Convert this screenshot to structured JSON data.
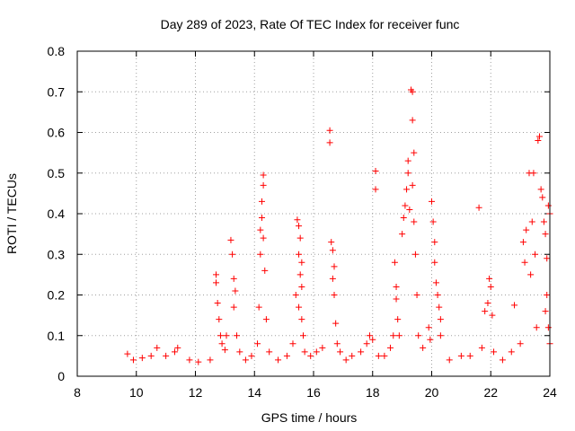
{
  "chart_data": {
    "type": "scatter",
    "title": "Day 289 of 2023, Rate Of TEC Index for receiver func",
    "xlabel": "GPS time / hours",
    "ylabel": "ROTI / TECUs",
    "xlim": [
      8,
      24
    ],
    "ylim": [
      0,
      0.8
    ],
    "x_ticks": [
      "8",
      "10",
      "12",
      "14",
      "16",
      "18",
      "20",
      "22",
      "24"
    ],
    "y_ticks": [
      "0",
      "0.1",
      "0.2",
      "0.3",
      "0.4",
      "0.5",
      "0.6",
      "0.7",
      "0.8"
    ],
    "grid": true,
    "marker": "+",
    "series": [
      {
        "name": "ROTI",
        "color": "#ff0000",
        "points": [
          [
            9.7,
            0.055
          ],
          [
            9.9,
            0.04
          ],
          [
            10.2,
            0.045
          ],
          [
            10.5,
            0.05
          ],
          [
            10.7,
            0.07
          ],
          [
            11.0,
            0.05
          ],
          [
            11.3,
            0.06
          ],
          [
            11.4,
            0.07
          ],
          [
            11.8,
            0.04
          ],
          [
            12.1,
            0.035
          ],
          [
            12.5,
            0.04
          ],
          [
            12.7,
            0.25
          ],
          [
            12.7,
            0.23
          ],
          [
            12.75,
            0.18
          ],
          [
            12.8,
            0.14
          ],
          [
            12.85,
            0.1
          ],
          [
            12.9,
            0.08
          ],
          [
            13.0,
            0.065
          ],
          [
            13.05,
            0.1
          ],
          [
            13.2,
            0.335
          ],
          [
            13.25,
            0.3
          ],
          [
            13.3,
            0.24
          ],
          [
            13.35,
            0.21
          ],
          [
            13.3,
            0.17
          ],
          [
            13.4,
            0.1
          ],
          [
            13.5,
            0.06
          ],
          [
            13.7,
            0.04
          ],
          [
            13.9,
            0.05
          ],
          [
            14.1,
            0.08
          ],
          [
            14.15,
            0.17
          ],
          [
            14.2,
            0.3
          ],
          [
            14.2,
            0.36
          ],
          [
            14.25,
            0.43
          ],
          [
            14.3,
            0.47
          ],
          [
            14.3,
            0.495
          ],
          [
            14.25,
            0.39
          ],
          [
            14.3,
            0.34
          ],
          [
            14.35,
            0.26
          ],
          [
            14.4,
            0.14
          ],
          [
            14.5,
            0.06
          ],
          [
            14.8,
            0.04
          ],
          [
            15.1,
            0.05
          ],
          [
            15.3,
            0.08
          ],
          [
            15.4,
            0.2
          ],
          [
            15.45,
            0.385
          ],
          [
            15.5,
            0.37
          ],
          [
            15.55,
            0.34
          ],
          [
            15.5,
            0.3
          ],
          [
            15.6,
            0.28
          ],
          [
            15.55,
            0.25
          ],
          [
            15.6,
            0.22
          ],
          [
            15.5,
            0.17
          ],
          [
            15.6,
            0.14
          ],
          [
            15.65,
            0.1
          ],
          [
            15.7,
            0.06
          ],
          [
            15.9,
            0.05
          ],
          [
            16.1,
            0.06
          ],
          [
            16.3,
            0.07
          ],
          [
            16.55,
            0.605
          ],
          [
            16.55,
            0.575
          ],
          [
            16.6,
            0.33
          ],
          [
            16.65,
            0.31
          ],
          [
            16.7,
            0.27
          ],
          [
            16.65,
            0.24
          ],
          [
            16.7,
            0.2
          ],
          [
            16.75,
            0.13
          ],
          [
            16.8,
            0.08
          ],
          [
            16.9,
            0.06
          ],
          [
            17.1,
            0.04
          ],
          [
            17.3,
            0.05
          ],
          [
            17.6,
            0.06
          ],
          [
            17.8,
            0.08
          ],
          [
            17.9,
            0.1
          ],
          [
            18.0,
            0.09
          ],
          [
            18.1,
            0.505
          ],
          [
            18.1,
            0.46
          ],
          [
            18.2,
            0.05
          ],
          [
            18.4,
            0.05
          ],
          [
            18.6,
            0.07
          ],
          [
            18.7,
            0.1
          ],
          [
            18.75,
            0.28
          ],
          [
            18.8,
            0.22
          ],
          [
            18.8,
            0.19
          ],
          [
            18.85,
            0.14
          ],
          [
            18.9,
            0.1
          ],
          [
            19.0,
            0.35
          ],
          [
            19.05,
            0.39
          ],
          [
            19.1,
            0.42
          ],
          [
            19.15,
            0.46
          ],
          [
            19.2,
            0.53
          ],
          [
            19.2,
            0.5
          ],
          [
            19.25,
            0.41
          ],
          [
            19.3,
            0.705
          ],
          [
            19.35,
            0.7
          ],
          [
            19.35,
            0.63
          ],
          [
            19.4,
            0.55
          ],
          [
            19.35,
            0.47
          ],
          [
            19.4,
            0.38
          ],
          [
            19.45,
            0.3
          ],
          [
            19.5,
            0.2
          ],
          [
            19.55,
            0.1
          ],
          [
            19.7,
            0.07
          ],
          [
            19.9,
            0.12
          ],
          [
            19.95,
            0.09
          ],
          [
            20.0,
            0.43
          ],
          [
            20.05,
            0.38
          ],
          [
            20.1,
            0.33
          ],
          [
            20.1,
            0.28
          ],
          [
            20.15,
            0.23
          ],
          [
            20.2,
            0.2
          ],
          [
            20.25,
            0.17
          ],
          [
            20.3,
            0.14
          ],
          [
            20.3,
            0.1
          ],
          [
            20.6,
            0.04
          ],
          [
            21.0,
            0.05
          ],
          [
            21.3,
            0.05
          ],
          [
            21.6,
            0.415
          ],
          [
            21.7,
            0.07
          ],
          [
            21.8,
            0.16
          ],
          [
            21.9,
            0.18
          ],
          [
            21.95,
            0.24
          ],
          [
            22.0,
            0.22
          ],
          [
            22.05,
            0.15
          ],
          [
            22.1,
            0.06
          ],
          [
            22.4,
            0.04
          ],
          [
            22.7,
            0.06
          ],
          [
            22.8,
            0.175
          ],
          [
            23.0,
            0.08
          ],
          [
            23.1,
            0.33
          ],
          [
            23.15,
            0.28
          ],
          [
            23.2,
            0.36
          ],
          [
            23.3,
            0.5
          ],
          [
            23.35,
            0.25
          ],
          [
            23.4,
            0.38
          ],
          [
            23.45,
            0.5
          ],
          [
            23.5,
            0.3
          ],
          [
            23.55,
            0.12
          ],
          [
            23.6,
            0.58
          ],
          [
            23.65,
            0.59
          ],
          [
            23.7,
            0.46
          ],
          [
            23.75,
            0.44
          ],
          [
            23.8,
            0.38
          ],
          [
            23.85,
            0.35
          ],
          [
            23.9,
            0.29
          ],
          [
            23.9,
            0.2
          ],
          [
            23.95,
            0.42
          ],
          [
            24.0,
            0.4
          ],
          [
            23.85,
            0.16
          ],
          [
            23.95,
            0.12
          ],
          [
            24.0,
            0.08
          ]
        ]
      }
    ]
  }
}
